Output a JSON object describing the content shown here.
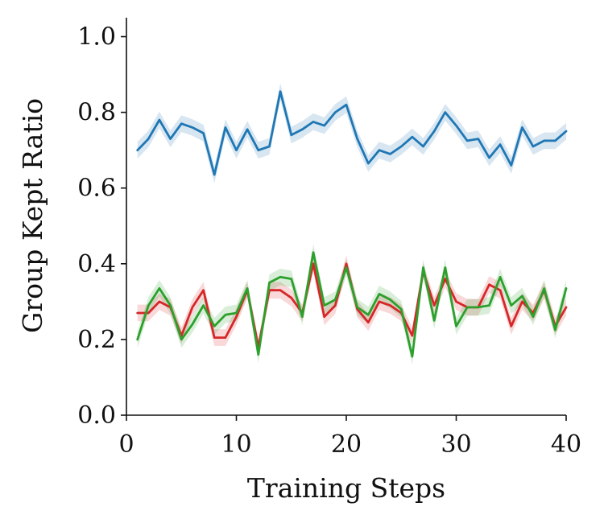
{
  "chart_data": {
    "type": "line",
    "title": "",
    "xlabel": "Training Steps",
    "ylabel": "Group Kept Ratio",
    "xlim": [
      0,
      40
    ],
    "ylim": [
      0,
      1.05
    ],
    "xticks": [
      0,
      10,
      20,
      30,
      40
    ],
    "yticks": [
      0.0,
      0.2,
      0.4,
      0.6,
      0.8,
      1.0
    ],
    "xtick_labels": [
      "0",
      "10",
      "20",
      "30",
      "40"
    ],
    "ytick_labels": [
      "0.0",
      "0.2",
      "0.4",
      "0.6",
      "0.8",
      "1.0"
    ],
    "grid": false,
    "legend": "none",
    "x": [
      1,
      2,
      3,
      4,
      5,
      6,
      7,
      8,
      9,
      10,
      11,
      12,
      13,
      14,
      15,
      16,
      17,
      18,
      19,
      20,
      21,
      22,
      23,
      24,
      25,
      26,
      27,
      28,
      29,
      30,
      31,
      32,
      33,
      34,
      35,
      36,
      37,
      38,
      39,
      40
    ],
    "series": [
      {
        "color": "#1f77b4",
        "band": 0.022,
        "values": [
          0.7,
          0.73,
          0.78,
          0.73,
          0.77,
          0.76,
          0.745,
          0.635,
          0.76,
          0.7,
          0.755,
          0.7,
          0.71,
          0.855,
          0.74,
          0.755,
          0.775,
          0.765,
          0.8,
          0.82,
          0.73,
          0.665,
          0.7,
          0.69,
          0.71,
          0.735,
          0.71,
          0.75,
          0.8,
          0.765,
          0.725,
          0.73,
          0.68,
          0.715,
          0.66,
          0.76,
          0.71,
          0.725,
          0.725,
          0.75
        ]
      },
      {
        "color": "#d62728",
        "band": 0.022,
        "values": [
          0.27,
          0.27,
          0.3,
          0.285,
          0.21,
          0.285,
          0.33,
          0.205,
          0.205,
          0.26,
          0.33,
          0.18,
          0.33,
          0.33,
          0.31,
          0.27,
          0.4,
          0.26,
          0.29,
          0.4,
          0.28,
          0.245,
          0.3,
          0.29,
          0.27,
          0.21,
          0.38,
          0.29,
          0.36,
          0.3,
          0.285,
          0.285,
          0.345,
          0.33,
          0.235,
          0.3,
          0.27,
          0.33,
          0.235,
          0.285
        ]
      },
      {
        "color": "#2ca02c",
        "band": 0.022,
        "values": [
          0.2,
          0.29,
          0.335,
          0.29,
          0.2,
          0.24,
          0.29,
          0.235,
          0.265,
          0.27,
          0.335,
          0.16,
          0.35,
          0.365,
          0.36,
          0.26,
          0.43,
          0.29,
          0.305,
          0.39,
          0.285,
          0.265,
          0.32,
          0.305,
          0.28,
          0.155,
          0.39,
          0.25,
          0.39,
          0.235,
          0.285,
          0.285,
          0.29,
          0.365,
          0.29,
          0.315,
          0.26,
          0.335,
          0.225,
          0.335
        ]
      }
    ]
  }
}
